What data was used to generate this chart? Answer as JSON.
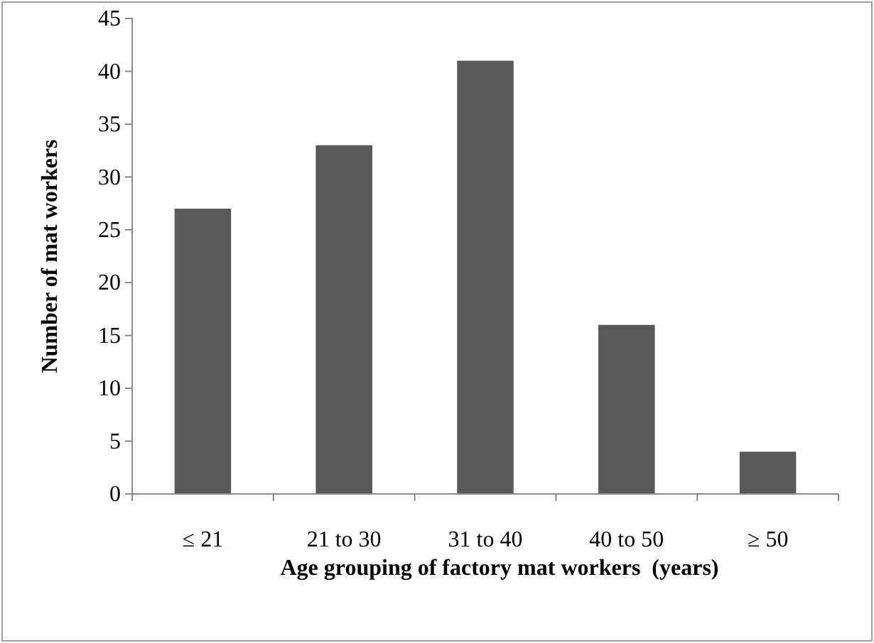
{
  "chart_data": {
    "type": "bar",
    "xlabel": "Age grouping of factory mat workers  (years)",
    "ylabel": "Number of mat workers",
    "categories": [
      "≤ 21",
      "21 to 30",
      "31 to 40",
      "40 to 50",
      "≥ 50"
    ],
    "values": [
      27,
      33,
      41,
      16,
      4
    ],
    "color": "#595959",
    "ylim": [
      0,
      45
    ],
    "yticks": [
      0,
      5,
      10,
      15,
      20,
      25,
      30,
      35,
      40,
      45
    ],
    "grid": false
  }
}
